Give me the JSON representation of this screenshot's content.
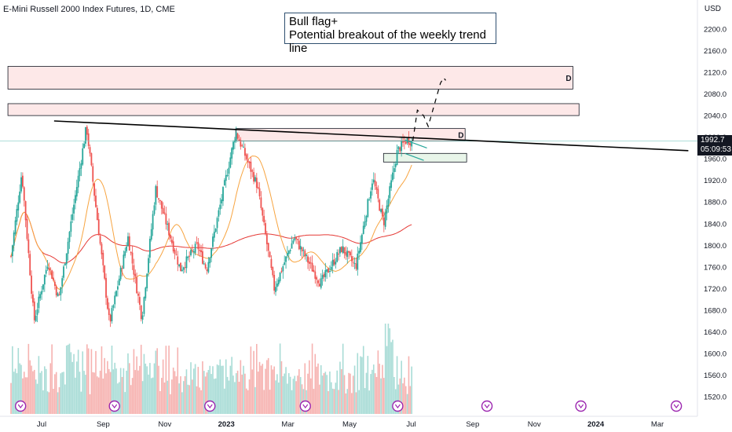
{
  "header": {
    "title": "E-Mini Russell 2000 Index Futures, 1D, CME",
    "currency": "USD"
  },
  "annotation": {
    "line1": "Bull flag+",
    "line2": "Potential breakout of the weekly trend line"
  },
  "last_price": {
    "value": "1992.7",
    "countdown": "05:09:53"
  },
  "zone_labels": [
    "D",
    "D"
  ],
  "colors": {
    "up": "#26a69a",
    "down": "#ef5350",
    "ma_fast": "#f7a440",
    "ma_slow": "#e53935",
    "trend": "#000000",
    "zone_red_fill": "#fde8e8",
    "zone_green_fill": "#e8f5e9",
    "price_line": "#80cbc4",
    "event_icon": "#9c27b0"
  },
  "chart_data": {
    "type": "candlestick",
    "title": "E-Mini Russell 2000 Index Futures, 1D, CME",
    "y_ticks": [
      1520,
      1560,
      1600,
      1640,
      1680,
      1720,
      1760,
      1800,
      1840,
      1880,
      1920,
      1960,
      2000,
      2040,
      2080,
      2120,
      2160,
      2200
    ],
    "y_tick_labels": [
      "1520.0",
      "1560.0",
      "1600.0",
      "1640.0",
      "1680.0",
      "1720.0",
      "1760.0",
      "1800.0",
      "1840.0",
      "1880.0",
      "1920.0",
      "1960.0",
      "2000.0",
      "2040.0",
      "2080.0",
      "2120.0",
      "2160.0",
      "2200.0"
    ],
    "x_tick_labels": [
      "Jul",
      "Sep",
      "Nov",
      "2023",
      "Mar",
      "May",
      "Jul",
      "Sep",
      "Nov",
      "2024",
      "Mar"
    ],
    "x_tick_month_index": [
      0,
      2,
      4,
      6,
      8,
      10,
      12,
      14,
      16,
      18,
      20
    ],
    "ylim": [
      1500,
      2230
    ],
    "x_start": "2022-06-01",
    "last_close": 1992.7,
    "swing_points": [
      {
        "m": 0.0,
        "v": 1780
      },
      {
        "m": 0.35,
        "v": 1935
      },
      {
        "m": 0.75,
        "v": 1660
      },
      {
        "m": 1.2,
        "v": 1770
      },
      {
        "m": 1.55,
        "v": 1700
      },
      {
        "m": 2.45,
        "v": 2020
      },
      {
        "m": 3.2,
        "v": 1655
      },
      {
        "m": 3.8,
        "v": 1815
      },
      {
        "m": 4.25,
        "v": 1665
      },
      {
        "m": 4.7,
        "v": 1905
      },
      {
        "m": 5.5,
        "v": 1755
      },
      {
        "m": 6.05,
        "v": 1800
      },
      {
        "m": 6.35,
        "v": 1755
      },
      {
        "m": 7.3,
        "v": 2010
      },
      {
        "m": 8.0,
        "v": 1910
      },
      {
        "m": 8.55,
        "v": 1720
      },
      {
        "m": 9.2,
        "v": 1815
      },
      {
        "m": 10.05,
        "v": 1730
      },
      {
        "m": 10.75,
        "v": 1795
      },
      {
        "m": 11.2,
        "v": 1760
      },
      {
        "m": 11.75,
        "v": 1925
      },
      {
        "m": 12.1,
        "v": 1840
      },
      {
        "m": 12.55,
        "v": 1975
      },
      {
        "m": 12.85,
        "v": 1995
      },
      {
        "m": 13.05,
        "v": 1992.7
      }
    ],
    "trend_line": {
      "from": {
        "m": 1.4,
        "v": 2030
      },
      "to": {
        "m": 22.0,
        "v": 1975
      }
    },
    "projection_path": [
      {
        "m": 13.05,
        "v": 1993
      },
      {
        "m": 13.2,
        "v": 2050
      },
      {
        "m": 13.4,
        "v": 2040
      },
      {
        "m": 13.55,
        "v": 2020
      },
      {
        "m": 13.75,
        "v": 2060
      },
      {
        "m": 13.95,
        "v": 2100
      },
      {
        "m": 14.05,
        "v": 2110
      },
      {
        "m": 14.12,
        "v": 2105
      }
    ],
    "zones": [
      {
        "m_from": -0.1,
        "m_to": 18.25,
        "v_low": 2089,
        "v_high": 2131,
        "kind": "resistance",
        "label": "D"
      },
      {
        "m_from": -0.1,
        "m_to": 18.45,
        "v_low": 2040,
        "v_high": 2062,
        "kind": "resistance",
        "label": ""
      },
      {
        "m_from": 7.3,
        "m_to": 14.75,
        "v_low": 1993,
        "v_high": 2016,
        "kind": "resistance",
        "label": "D"
      },
      {
        "m_from": 12.1,
        "m_to": 14.8,
        "v_low": 1954,
        "v_high": 1970,
        "kind": "support",
        "label": ""
      }
    ],
    "event_markers_m": [
      -0.2,
      2.85,
      5.95,
      9.05,
      12.05,
      14.95,
      18.0,
      21.1
    ],
    "volume_range": [
      0,
      100
    ]
  }
}
